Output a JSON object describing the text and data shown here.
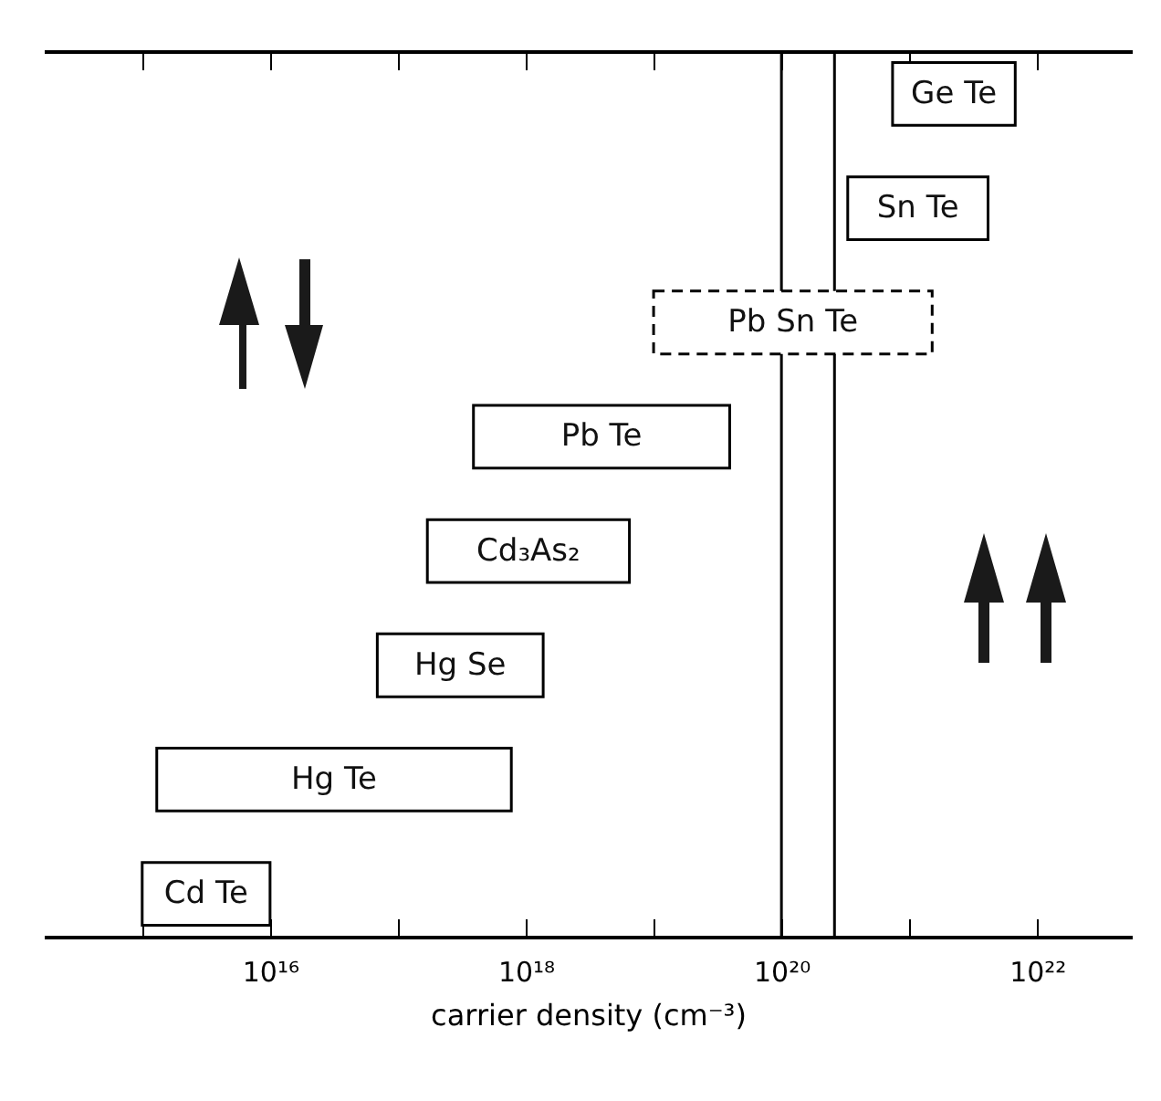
{
  "chart_data": {
    "type": "bar",
    "orientation": "horizontal",
    "log": "x",
    "tick_labels": "x",
    "categories": [
      "Ge Te",
      "Sn Te",
      "Pb Sn Te",
      "Pb Te",
      "Cd₃As₂",
      "Hg Se",
      "Hg Te",
      "Cd Te"
    ],
    "series": [
      {
        "color": "#000000",
        "base": [
          7.4e+20,
          3.3e+20,
          null,
          3.9e+17,
          1.7e+17,
          6.9e+16,
          1300000000000000.0,
          1000000000000000.0
        ],
        "values": [
          6e+21,
          3.8e+21,
          null,
          3.9e+19,
          6.3e+18,
          1.3e+18,
          7.7e+17,
          9000000000000000.0
        ]
      },
      {
        "color": "#000000",
        "line_style": "dashed",
        "base": [
          null,
          null,
          1e+19,
          null,
          null,
          null,
          null,
          null
        ],
        "values": [
          null,
          null,
          1.5e+21,
          null,
          null,
          null,
          null,
          null
        ]
      }
    ],
    "xlim": [
      170000000000000.0,
      5.5e+22
    ],
    "xticks": [
      {
        "value": 1000000000000000.0,
        "label": null
      },
      {
        "value": 1e+16,
        "label": "10¹⁶"
      },
      {
        "value": 1e+17,
        "label": null
      },
      {
        "value": 1e+18,
        "label": "10¹⁸"
      },
      {
        "value": 1e+19,
        "label": null
      },
      {
        "value": 1e+20,
        "label": "10²⁰"
      },
      {
        "value": 1e+21,
        "label": null
      },
      {
        "value": 1e+22,
        "label": "10²²"
      }
    ],
    "xlabel": "carrier density (cm⁻³)",
    "ref_lines": [
      {
        "axis": "x",
        "value": 1e+20,
        "color": "#000000"
      },
      {
        "axis": "x",
        "value": 2.6e+20,
        "color": "#000000"
      }
    ]
  }
}
